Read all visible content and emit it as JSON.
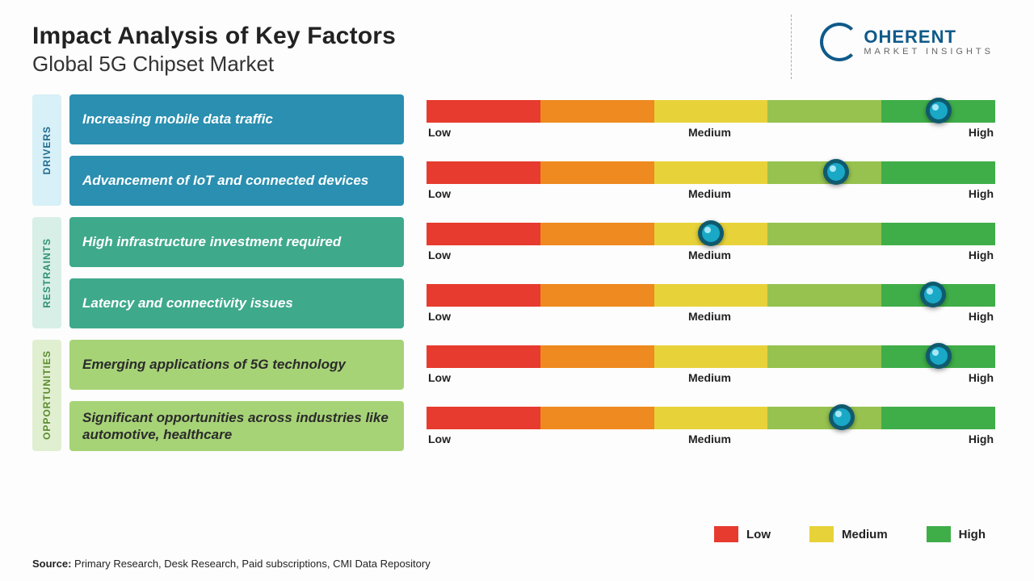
{
  "header": {
    "title": "Impact Analysis of Key Factors",
    "subtitle": "Global 5G Chipset Market"
  },
  "logo": {
    "brand_top": "OHERENT",
    "brand_bottom": "MARKET INSIGHTS"
  },
  "scale": {
    "low": "Low",
    "medium": "Medium",
    "high": "High",
    "seg_colors": [
      "#e63b2e",
      "#ee8a1f",
      "#e8d23a",
      "#97c24f",
      "#3fae49"
    ]
  },
  "categories": [
    {
      "label": "DRIVERS",
      "tab_bg": "#d8f0f7",
      "tab_text": "#1e6a8e",
      "box_bg": "#2a8fb0",
      "items": [
        {
          "text": "Increasing mobile data traffic",
          "marker_pct": 90
        },
        {
          "text": "Advancement of IoT and connected devices",
          "marker_pct": 72
        }
      ]
    },
    {
      "label": "RESTRAINTS",
      "tab_bg": "#d7efe7",
      "tab_text": "#2e8f74",
      "box_bg": "#3fa98b",
      "items": [
        {
          "text": "High infrastructure investment required",
          "marker_pct": 50
        },
        {
          "text": "Latency and connectivity issues",
          "marker_pct": 89
        }
      ]
    },
    {
      "label": "OPPORTUNITIES",
      "tab_bg": "#e0efcf",
      "tab_text": "#5a8a2f",
      "box_bg": "#a7d377",
      "box_text": "#2b2b2b",
      "items": [
        {
          "text": "Emerging applications of 5G technology",
          "marker_pct": 90
        },
        {
          "text": "Significant opportunities across industries like automotive, healthcare",
          "marker_pct": 73
        }
      ]
    }
  ],
  "marker_style": {
    "outer": "#0f5a6e",
    "inner": "#1aa8c7",
    "highlight": "#bff3ff"
  },
  "legend": [
    {
      "label": "Low",
      "color": "#e63b2e"
    },
    {
      "label": "Medium",
      "color": "#e8d23a"
    },
    {
      "label": "High",
      "color": "#3fae49"
    }
  ],
  "source": {
    "label": "Source:",
    "text": " Primary Research, Desk Research, Paid subscriptions, CMI Data Repository"
  }
}
